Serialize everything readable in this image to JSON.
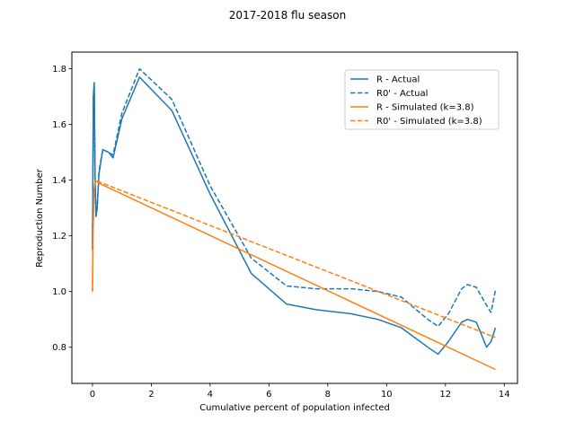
{
  "chart_data": {
    "type": "line",
    "title": "2017-2018 flu season",
    "xlabel": "Cumulative percent of population infected",
    "ylabel": "Reproduction Number",
    "xlim": [
      -0.7,
      14.45
    ],
    "ylim": [
      0.67,
      1.86
    ],
    "xticks": [
      0,
      2,
      4,
      6,
      8,
      10,
      12,
      14
    ],
    "yticks": [
      0.8,
      1.0,
      1.2,
      1.4,
      1.6,
      1.8
    ],
    "x_tick_labels": [
      "0",
      "2",
      "4",
      "6",
      "8",
      "10",
      "12",
      "14"
    ],
    "y_tick_labels": [
      "0.8",
      "1.0",
      "1.2",
      "1.4",
      "1.6",
      "1.8"
    ],
    "grid": false,
    "legend_position": "top-right",
    "series": [
      {
        "name": "R - Actual",
        "color": "#1f77b4",
        "dash": "solid",
        "x": [
          0.0,
          0.03,
          0.06,
          0.09,
          0.12,
          0.16,
          0.22,
          0.35,
          0.55,
          0.7,
          1.0,
          1.6,
          2.7,
          4.0,
          5.4,
          6.6,
          7.6,
          8.8,
          9.7,
          10.5,
          11.4,
          11.75,
          12.1,
          12.55,
          12.75,
          13.05,
          13.4,
          13.55,
          13.7
        ],
        "y": [
          1.15,
          1.7,
          1.75,
          1.4,
          1.27,
          1.3,
          1.42,
          1.51,
          1.5,
          1.48,
          1.62,
          1.77,
          1.65,
          1.35,
          1.065,
          0.955,
          0.935,
          0.92,
          0.9,
          0.87,
          0.8,
          0.775,
          0.82,
          0.89,
          0.9,
          0.89,
          0.8,
          0.82,
          0.87
        ]
      },
      {
        "name": "R0' - Actual",
        "color": "#1f77b4",
        "dash": "dashed",
        "x": [
          0.0,
          0.03,
          0.06,
          0.09,
          0.12,
          0.16,
          0.22,
          0.35,
          0.55,
          0.7,
          1.0,
          1.6,
          2.7,
          4.0,
          5.4,
          6.6,
          7.6,
          8.8,
          9.7,
          10.5,
          11.4,
          11.75,
          12.1,
          12.55,
          12.75,
          13.05,
          13.4,
          13.55,
          13.7
        ],
        "y": [
          1.15,
          1.7,
          1.75,
          1.4,
          1.27,
          1.3,
          1.43,
          1.51,
          1.5,
          1.49,
          1.64,
          1.8,
          1.69,
          1.38,
          1.12,
          1.02,
          1.01,
          1.01,
          1.0,
          0.98,
          0.9,
          0.875,
          0.92,
          1.01,
          1.025,
          1.015,
          0.95,
          0.925,
          1.005
        ]
      },
      {
        "name": "R - Simulated (k=3.8)",
        "color": "#ff7f0e",
        "dash": "solid",
        "x": [
          0.0,
          0.02,
          0.05,
          0.1,
          0.2,
          13.7
        ],
        "y": [
          1.0,
          1.2,
          1.36,
          1.4,
          1.39,
          0.72
        ]
      },
      {
        "name": "R0' - Simulated (k=3.8)",
        "color": "#ff7f0e",
        "dash": "dashed",
        "x": [
          0.0,
          0.02,
          0.05,
          0.1,
          0.2,
          13.7
        ],
        "y": [
          1.0,
          1.2,
          1.36,
          1.4,
          1.395,
          0.835
        ]
      }
    ]
  }
}
